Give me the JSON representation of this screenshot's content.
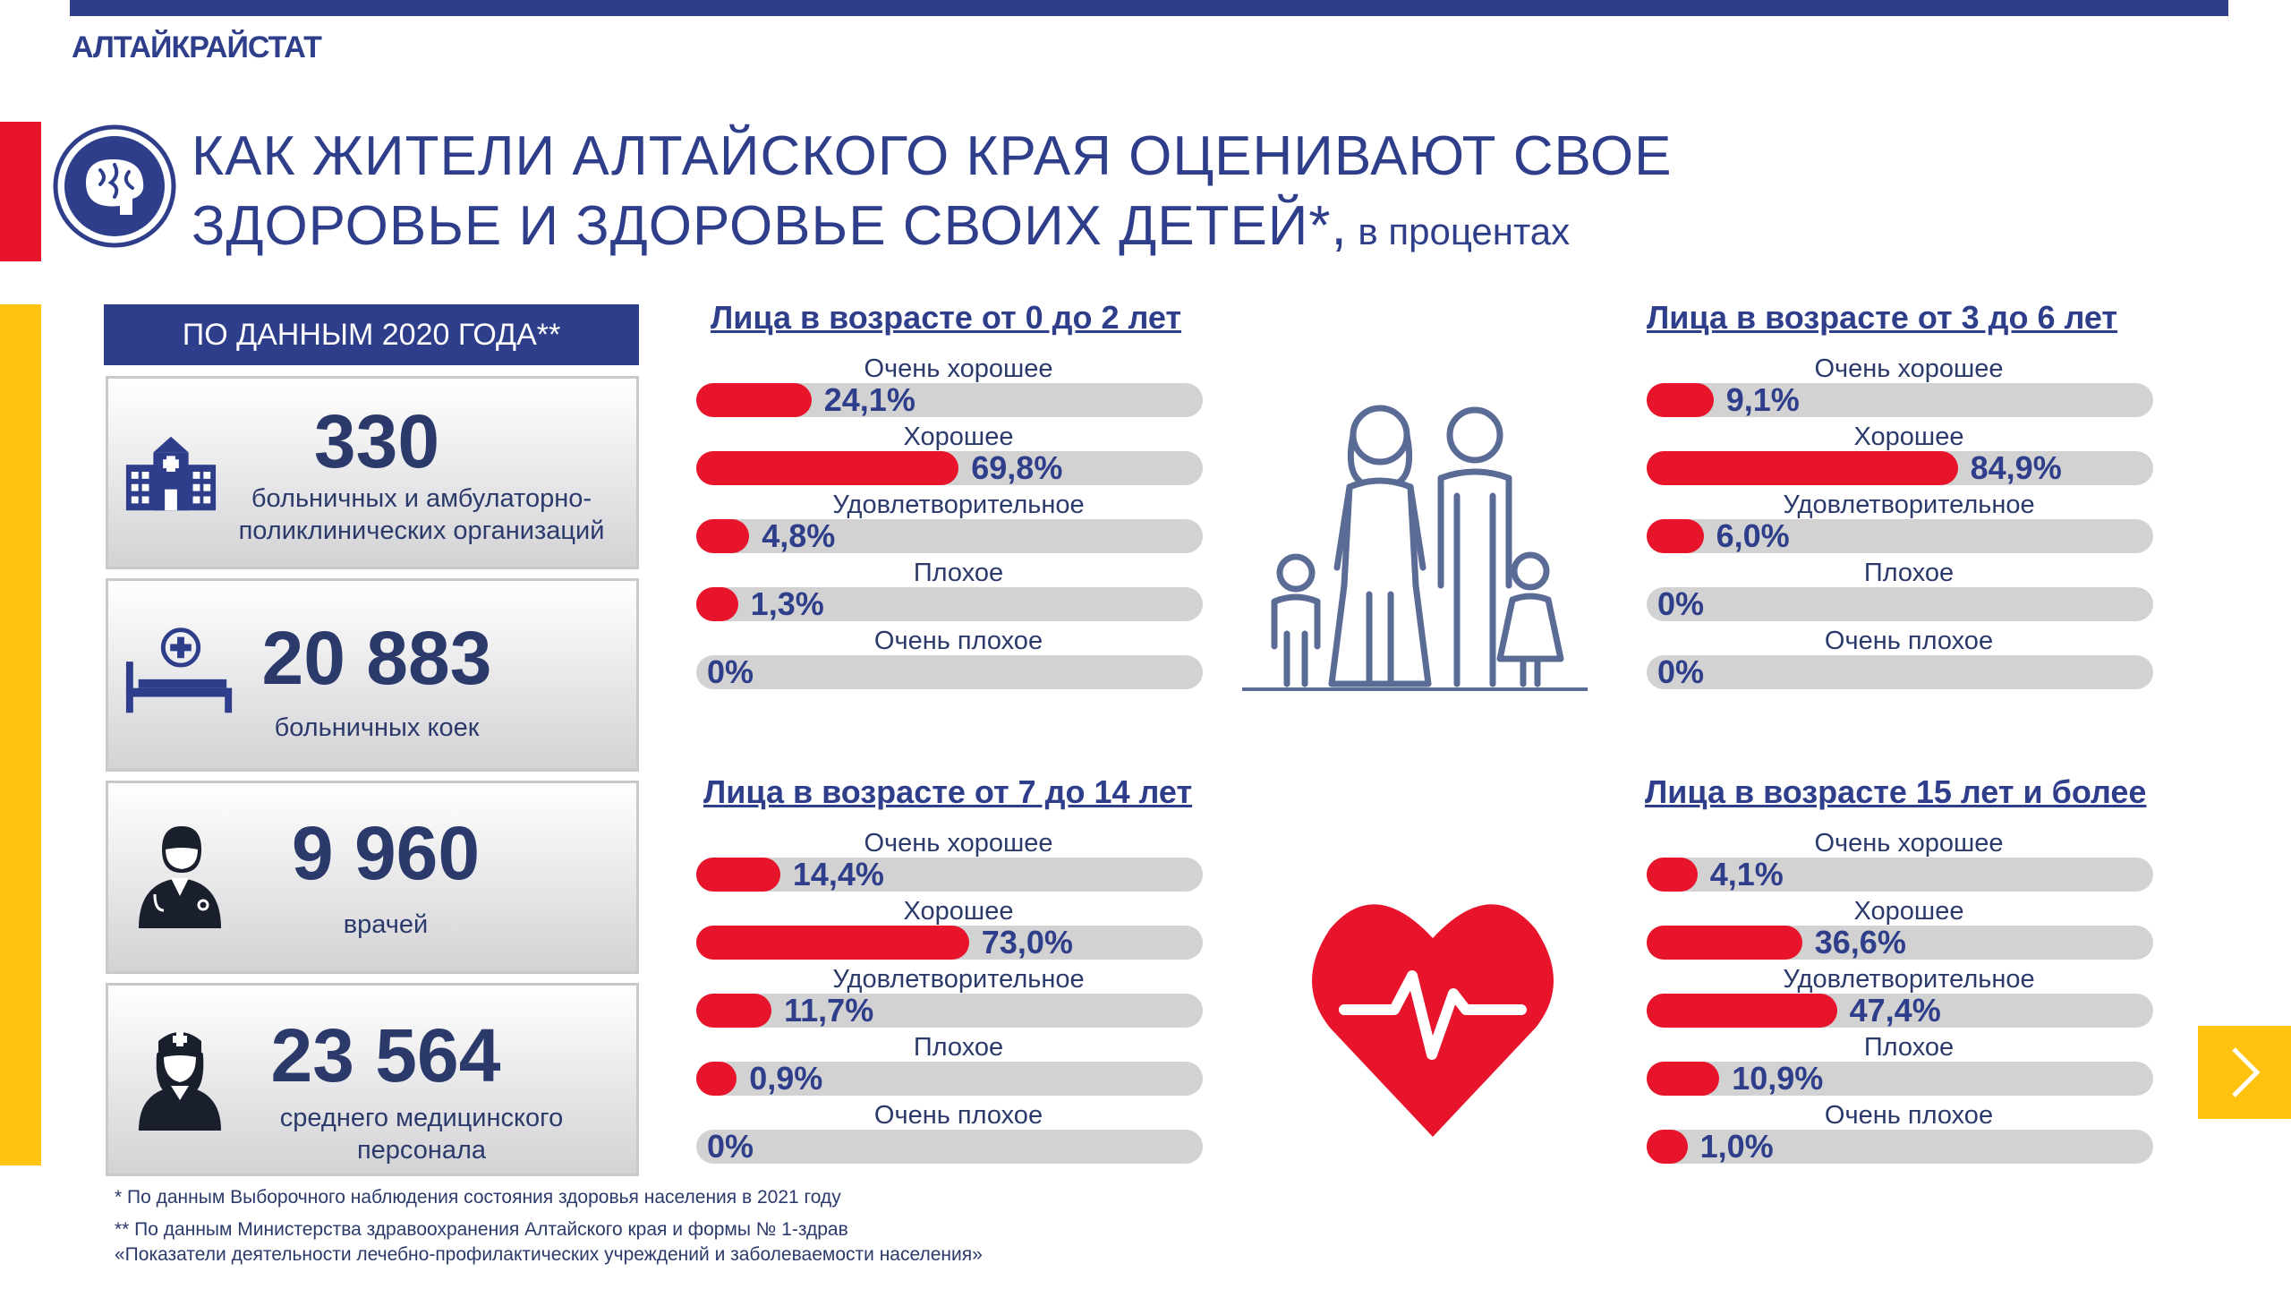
{
  "org": "АЛТАЙКРАЙСТАТ",
  "title_line1": "КАК ЖИТЕЛИ АЛТАЙСКОГО КРАЯ ОЦЕНИВАЮТ СВОЕ",
  "title_line2": "ЗДОРОВЬЕ И ЗДОРОВЬЕ СВОИХ ДЕТЕЙ*,",
  "title_unit": " в процентах",
  "stats_header": "ПО ДАННЫМ 2020 ГОДА**",
  "stats": [
    {
      "value": "330",
      "label1": "больничных и амбулаторно-",
      "label2": "поликлинических организаций",
      "icon": "hospital-icon"
    },
    {
      "value": "20 883",
      "label1": "больничных коек",
      "label2": "",
      "icon": "hospital-bed-icon"
    },
    {
      "value": "9 960",
      "label1": "врачей",
      "label2": "",
      "icon": "doctor-icon"
    },
    {
      "value": "23 564",
      "label1": "среднего медицинского",
      "label2": "персонала",
      "icon": "nurse-icon"
    }
  ],
  "footnotes": [
    "* По данным Выборочного наблюдения состояния здоровья населения в 2021 году",
    "** По данным Министерства здравоохранения Алтайского края и формы № 1-здрав",
    "«Показатели деятельности лечебно-профилактических учреждений и заболеваемости населения»"
  ],
  "chart_data": {
    "type": "bar",
    "orientation": "horizontal",
    "unit": "%",
    "xlim": [
      0,
      100
    ],
    "categories": [
      "Очень хорошее",
      "Хорошее",
      "Удовлетворительное",
      "Плохое",
      "Очень плохое"
    ],
    "groups": [
      {
        "title": "Лица в возрасте от 0 до 2 лет",
        "values": [
          24.1,
          69.8,
          4.8,
          1.3,
          0
        ],
        "labels": [
          "24,1%",
          "69,8%",
          "4,8%",
          "1,3%",
          "0%"
        ]
      },
      {
        "title": "Лица в возрасте от 3 до 6 лет",
        "values": [
          9.1,
          84.9,
          6.0,
          0,
          0
        ],
        "labels": [
          "9,1%",
          "84,9%",
          "6,0%",
          "0%",
          "0%"
        ]
      },
      {
        "title": "Лица в возрасте от 7 до 14 лет",
        "values": [
          14.4,
          73.0,
          11.7,
          0.9,
          0
        ],
        "labels": [
          "14,4%",
          "73,0%",
          "11,7%",
          "0,9%",
          "0%"
        ]
      },
      {
        "title": "Лица в возрасте 15 лет и более",
        "values": [
          4.1,
          36.6,
          47.4,
          10.9,
          1.0
        ],
        "labels": [
          "4,1%",
          "36,6%",
          "47,4%",
          "10,9%",
          "1,0%"
        ]
      }
    ]
  },
  "colors": {
    "navy": "#2e3e8a",
    "red": "#e8142c",
    "yellow": "#ffc20e",
    "track": "#d2d2d2"
  }
}
